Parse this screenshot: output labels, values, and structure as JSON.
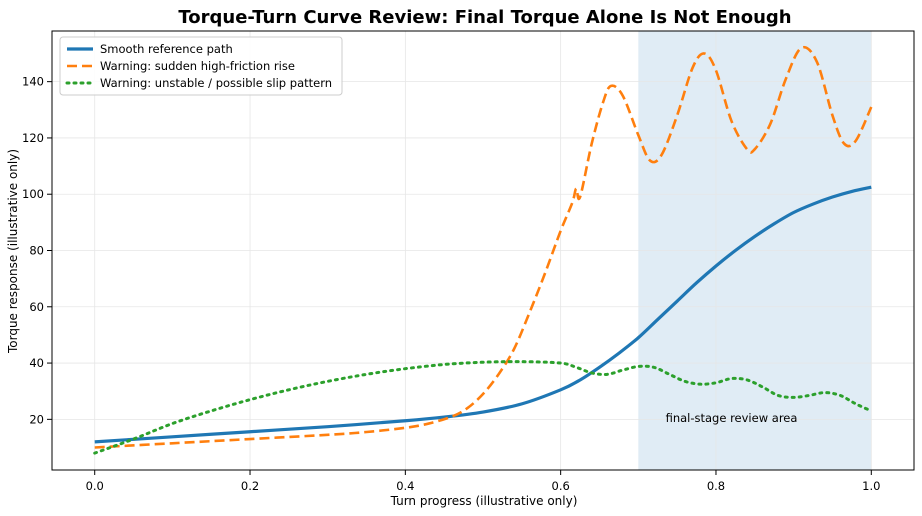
{
  "chart_data": {
    "type": "line",
    "title": "Torque-Turn Curve Review: Final Torque Alone Is Not Enough",
    "xlabel": "Turn progress (illustrative only)",
    "ylabel": "Torque response (illustrative only)",
    "xlim": [
      -0.055,
      1.055
    ],
    "ylim": [
      2,
      158
    ],
    "xticks": [
      0.0,
      0.2,
      0.4,
      0.6,
      0.8,
      1.0
    ],
    "xtick_labels": [
      "0.0",
      "0.2",
      "0.4",
      "0.6",
      "0.8",
      "1.0"
    ],
    "yticks": [
      20,
      40,
      60,
      80,
      100,
      120,
      140
    ],
    "ytick_labels": [
      "20",
      "40",
      "60",
      "80",
      "100",
      "120",
      "140"
    ],
    "grid": true,
    "legend_position": "top-left",
    "shaded_region": {
      "x": [
        0.7,
        1.0
      ],
      "color": "#d6e6f2",
      "label": "final-stage review area",
      "label_pos": [
        0.82,
        19
      ]
    },
    "series": [
      {
        "name": "Smooth reference path",
        "color": "#1f77b4",
        "style": "solid",
        "x": [
          0.0,
          0.1,
          0.2,
          0.3,
          0.4,
          0.45,
          0.5,
          0.55,
          0.6,
          0.625,
          0.65,
          0.675,
          0.7,
          0.725,
          0.75,
          0.775,
          0.8,
          0.825,
          0.85,
          0.875,
          0.9,
          0.925,
          0.95,
          0.975,
          1.0
        ],
        "y": [
          12,
          13.8,
          15.6,
          17.4,
          19.5,
          20.8,
          22.6,
          25.5,
          30.5,
          34,
          38.5,
          43.5,
          49,
          55.5,
          62,
          68.5,
          74.5,
          80,
          85,
          89.5,
          93.5,
          96.5,
          99,
          101,
          102.5
        ]
      },
      {
        "name": "Warning: sudden high-friction rise",
        "color": "#ff7f0e",
        "style": "dashed",
        "x": [
          0.0,
          0.1,
          0.2,
          0.3,
          0.35,
          0.4,
          0.43,
          0.46,
          0.48,
          0.5,
          0.52,
          0.54,
          0.56,
          0.58,
          0.6,
          0.615,
          0.62,
          0.625,
          0.64,
          0.655,
          0.665,
          0.68,
          0.7,
          0.715,
          0.73,
          0.75,
          0.77,
          0.785,
          0.8,
          0.82,
          0.84,
          0.85,
          0.87,
          0.89,
          0.91,
          0.93,
          0.95,
          0.965,
          0.98,
          1.0
        ],
        "y": [
          10,
          11.5,
          13,
          14.5,
          15.5,
          17,
          18.5,
          21,
          24,
          29,
          36,
          45,
          58,
          72,
          87,
          97,
          102,
          99,
          118,
          133,
          138.5,
          135,
          121,
          112,
          114,
          128,
          145,
          150,
          144,
          126,
          116,
          116,
          125,
          141,
          152,
          147,
          128,
          118,
          119,
          131
        ]
      },
      {
        "name": "Warning: unstable / possible slip pattern",
        "color": "#2ca02c",
        "style": "dotted",
        "x": [
          0.0,
          0.05,
          0.1,
          0.15,
          0.2,
          0.25,
          0.3,
          0.35,
          0.4,
          0.45,
          0.5,
          0.55,
          0.6,
          0.62,
          0.64,
          0.66,
          0.68,
          0.7,
          0.72,
          0.74,
          0.76,
          0.78,
          0.8,
          0.82,
          0.84,
          0.86,
          0.88,
          0.9,
          0.92,
          0.94,
          0.96,
          0.98,
          1.0
        ],
        "y": [
          8,
          13,
          18.5,
          23,
          27,
          30.5,
          33.5,
          36,
          38,
          39.5,
          40.3,
          40.5,
          40,
          38.5,
          36.5,
          36,
          37.5,
          38.8,
          38.5,
          36,
          33.5,
          32.5,
          33,
          34.5,
          34,
          31.5,
          28.5,
          27.8,
          28.5,
          29.5,
          28.5,
          25.5,
          23
        ]
      }
    ]
  }
}
